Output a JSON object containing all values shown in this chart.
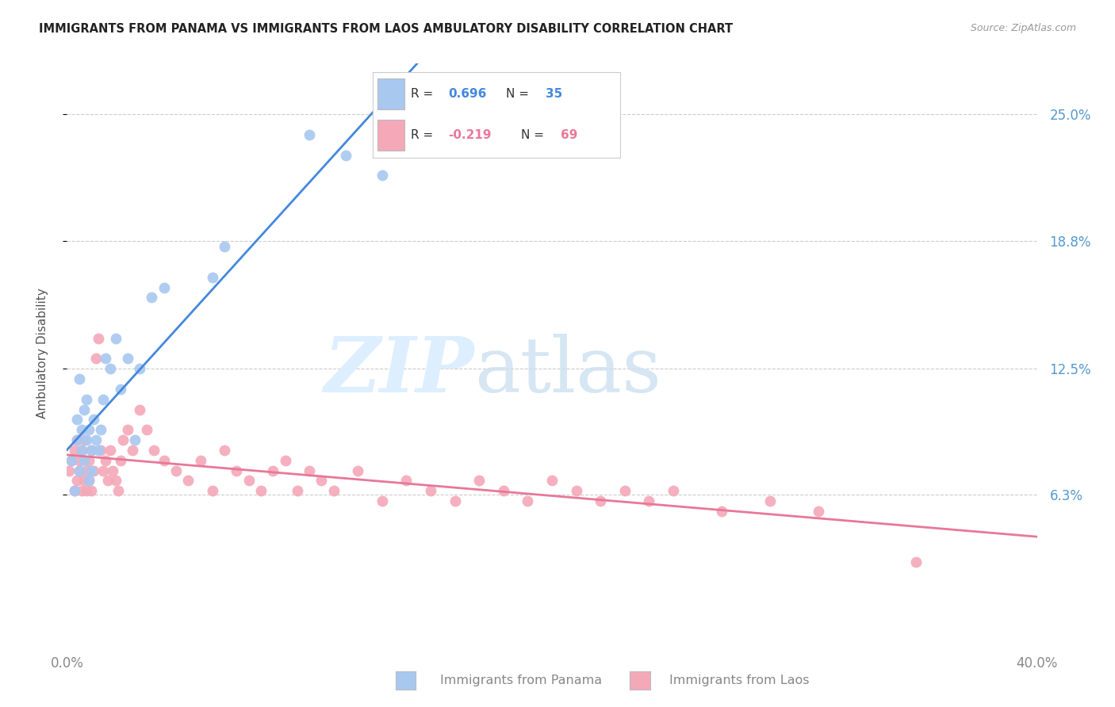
{
  "title": "IMMIGRANTS FROM PANAMA VS IMMIGRANTS FROM LAOS AMBULATORY DISABILITY CORRELATION CHART",
  "source": "Source: ZipAtlas.com",
  "ylabel": "Ambulatory Disability",
  "yticks": [
    "6.3%",
    "12.5%",
    "18.8%",
    "25.0%"
  ],
  "ytick_vals": [
    0.063,
    0.125,
    0.188,
    0.25
  ],
  "xlim": [
    0.0,
    0.4
  ],
  "ylim": [
    -0.01,
    0.275
  ],
  "legend_r_panama": "0.696",
  "legend_n_panama": "35",
  "legend_r_laos": "-0.219",
  "legend_n_laos": "69",
  "color_panama": "#a8c8f0",
  "color_laos": "#f4a8b8",
  "color_panama_line": "#4488dd",
  "color_laos_line": "#e87898",
  "panama_x": [
    0.002,
    0.003,
    0.004,
    0.004,
    0.005,
    0.005,
    0.006,
    0.006,
    0.007,
    0.007,
    0.008,
    0.008,
    0.009,
    0.009,
    0.01,
    0.01,
    0.011,
    0.012,
    0.013,
    0.014,
    0.015,
    0.016,
    0.018,
    0.02,
    0.022,
    0.025,
    0.028,
    0.03,
    0.035,
    0.04,
    0.06,
    0.065,
    0.1,
    0.115,
    0.13
  ],
  "panama_y": [
    0.08,
    0.065,
    0.09,
    0.1,
    0.075,
    0.12,
    0.085,
    0.095,
    0.105,
    0.08,
    0.09,
    0.11,
    0.07,
    0.095,
    0.085,
    0.075,
    0.1,
    0.09,
    0.085,
    0.095,
    0.11,
    0.13,
    0.125,
    0.14,
    0.115,
    0.13,
    0.09,
    0.125,
    0.16,
    0.165,
    0.17,
    0.185,
    0.24,
    0.23,
    0.22
  ],
  "laos_x": [
    0.001,
    0.002,
    0.003,
    0.003,
    0.004,
    0.004,
    0.005,
    0.005,
    0.006,
    0.006,
    0.007,
    0.007,
    0.008,
    0.008,
    0.009,
    0.009,
    0.01,
    0.01,
    0.011,
    0.012,
    0.013,
    0.014,
    0.015,
    0.016,
    0.017,
    0.018,
    0.019,
    0.02,
    0.021,
    0.022,
    0.023,
    0.025,
    0.027,
    0.03,
    0.033,
    0.036,
    0.04,
    0.045,
    0.05,
    0.055,
    0.06,
    0.065,
    0.07,
    0.075,
    0.08,
    0.085,
    0.09,
    0.095,
    0.1,
    0.105,
    0.11,
    0.12,
    0.13,
    0.14,
    0.15,
    0.16,
    0.17,
    0.18,
    0.19,
    0.2,
    0.21,
    0.22,
    0.23,
    0.24,
    0.25,
    0.27,
    0.29,
    0.31,
    0.35
  ],
  "laos_y": [
    0.075,
    0.08,
    0.085,
    0.065,
    0.09,
    0.07,
    0.08,
    0.075,
    0.085,
    0.065,
    0.09,
    0.07,
    0.075,
    0.065,
    0.08,
    0.07,
    0.085,
    0.065,
    0.075,
    0.13,
    0.14,
    0.085,
    0.075,
    0.08,
    0.07,
    0.085,
    0.075,
    0.07,
    0.065,
    0.08,
    0.09,
    0.095,
    0.085,
    0.105,
    0.095,
    0.085,
    0.08,
    0.075,
    0.07,
    0.08,
    0.065,
    0.085,
    0.075,
    0.07,
    0.065,
    0.075,
    0.08,
    0.065,
    0.075,
    0.07,
    0.065,
    0.075,
    0.06,
    0.07,
    0.065,
    0.06,
    0.07,
    0.065,
    0.06,
    0.07,
    0.065,
    0.06,
    0.065,
    0.06,
    0.065,
    0.055,
    0.06,
    0.055,
    0.03
  ]
}
